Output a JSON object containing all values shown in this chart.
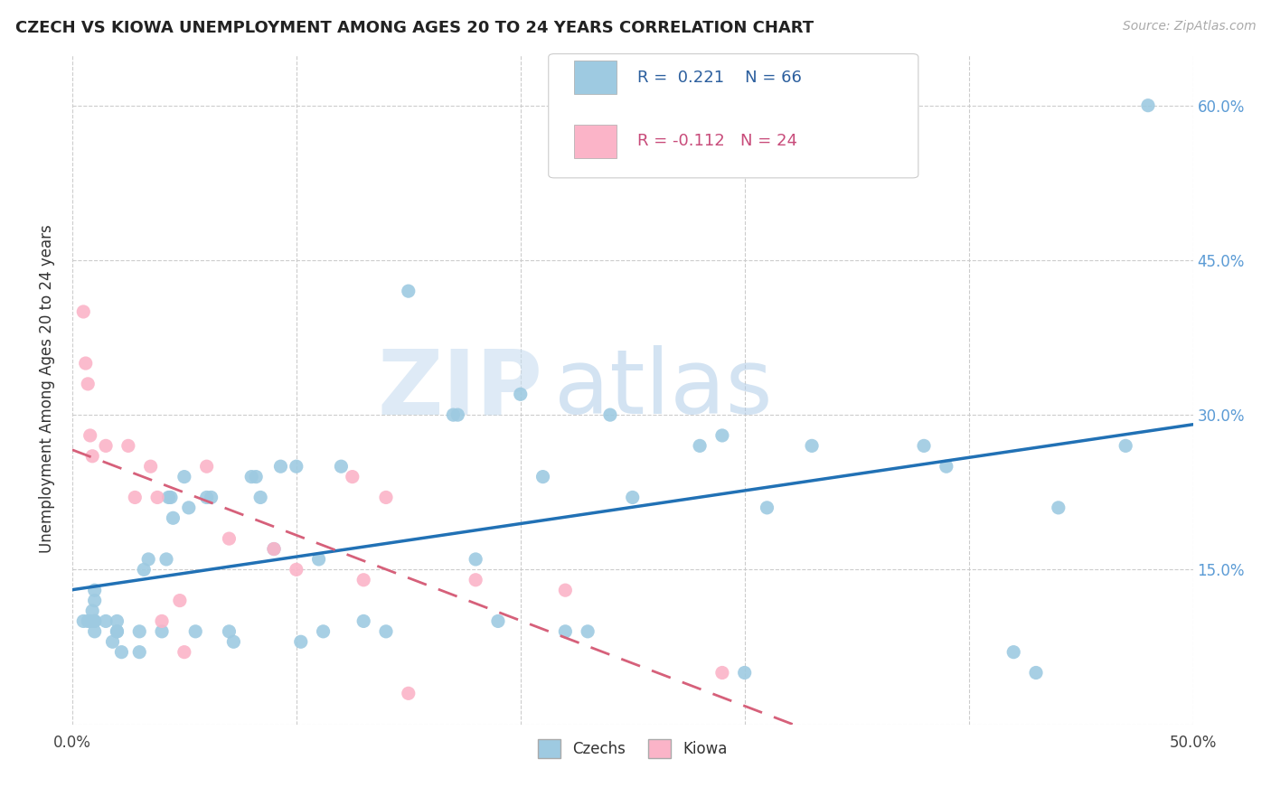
{
  "title": "CZECH VS KIOWA UNEMPLOYMENT AMONG AGES 20 TO 24 YEARS CORRELATION CHART",
  "source": "Source: ZipAtlas.com",
  "xlabel": "",
  "ylabel": "Unemployment Among Ages 20 to 24 years",
  "xlim": [
    0.0,
    0.5
  ],
  "ylim": [
    0.0,
    0.65
  ],
  "xticks": [
    0.0,
    0.1,
    0.2,
    0.3,
    0.4,
    0.5
  ],
  "xticklabels": [
    "0.0%",
    "",
    "",
    "",
    "",
    "50.0%"
  ],
  "yticks": [
    0.0,
    0.15,
    0.3,
    0.45,
    0.6
  ],
  "yticklabels_right": [
    "",
    "15.0%",
    "30.0%",
    "45.0%",
    "60.0%"
  ],
  "czech_R": 0.221,
  "czech_N": 66,
  "kiowa_R": -0.112,
  "kiowa_N": 24,
  "czech_color": "#9ecae1",
  "kiowa_color": "#fbb4c8",
  "czech_line_color": "#2171b5",
  "kiowa_line_color": "#d6607a",
  "background_color": "#ffffff",
  "watermark_zip": "ZIP",
  "watermark_atlas": "atlas",
  "czech_x": [
    0.005,
    0.007,
    0.008,
    0.009,
    0.01,
    0.01,
    0.01,
    0.01,
    0.01,
    0.015,
    0.018,
    0.02,
    0.02,
    0.02,
    0.022,
    0.03,
    0.03,
    0.032,
    0.034,
    0.04,
    0.042,
    0.043,
    0.044,
    0.045,
    0.05,
    0.052,
    0.055,
    0.06,
    0.062,
    0.07,
    0.072,
    0.08,
    0.082,
    0.084,
    0.09,
    0.093,
    0.1,
    0.102,
    0.11,
    0.112,
    0.12,
    0.13,
    0.14,
    0.15,
    0.17,
    0.172,
    0.18,
    0.19,
    0.2,
    0.21,
    0.22,
    0.23,
    0.24,
    0.25,
    0.28,
    0.29,
    0.3,
    0.31,
    0.33,
    0.38,
    0.39,
    0.42,
    0.43,
    0.44,
    0.47,
    0.48
  ],
  "czech_y": [
    0.1,
    0.1,
    0.1,
    0.11,
    0.1,
    0.1,
    0.09,
    0.12,
    0.13,
    0.1,
    0.08,
    0.09,
    0.09,
    0.1,
    0.07,
    0.07,
    0.09,
    0.15,
    0.16,
    0.09,
    0.16,
    0.22,
    0.22,
    0.2,
    0.24,
    0.21,
    0.09,
    0.22,
    0.22,
    0.09,
    0.08,
    0.24,
    0.24,
    0.22,
    0.17,
    0.25,
    0.25,
    0.08,
    0.16,
    0.09,
    0.25,
    0.1,
    0.09,
    0.42,
    0.3,
    0.3,
    0.16,
    0.1,
    0.32,
    0.24,
    0.09,
    0.09,
    0.3,
    0.22,
    0.27,
    0.28,
    0.05,
    0.21,
    0.27,
    0.27,
    0.25,
    0.07,
    0.05,
    0.21,
    0.27,
    0.6
  ],
  "kiowa_x": [
    0.005,
    0.006,
    0.007,
    0.008,
    0.009,
    0.015,
    0.025,
    0.028,
    0.035,
    0.038,
    0.04,
    0.048,
    0.05,
    0.06,
    0.07,
    0.09,
    0.1,
    0.125,
    0.13,
    0.14,
    0.15,
    0.18,
    0.22,
    0.29
  ],
  "kiowa_y": [
    0.4,
    0.35,
    0.33,
    0.28,
    0.26,
    0.27,
    0.27,
    0.22,
    0.25,
    0.22,
    0.1,
    0.12,
    0.07,
    0.25,
    0.18,
    0.17,
    0.15,
    0.24,
    0.14,
    0.22,
    0.03,
    0.14,
    0.13,
    0.05
  ]
}
